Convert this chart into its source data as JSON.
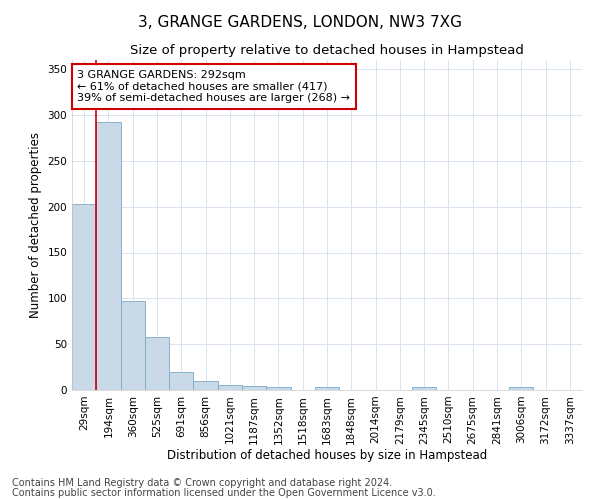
{
  "title": "3, GRANGE GARDENS, LONDON, NW3 7XG",
  "subtitle": "Size of property relative to detached houses in Hampstead",
  "xlabel": "Distribution of detached houses by size in Hampstead",
  "ylabel": "Number of detached properties",
  "bar_labels": [
    "29sqm",
    "194sqm",
    "360sqm",
    "525sqm",
    "691sqm",
    "856sqm",
    "1021sqm",
    "1187sqm",
    "1352sqm",
    "1518sqm",
    "1683sqm",
    "1848sqm",
    "2014sqm",
    "2179sqm",
    "2345sqm",
    "2510sqm",
    "2675sqm",
    "2841sqm",
    "3006sqm",
    "3172sqm",
    "3337sqm"
  ],
  "bar_values": [
    203,
    292,
    97,
    58,
    20,
    10,
    6,
    4,
    3,
    0,
    3,
    0,
    0,
    0,
    3,
    0,
    0,
    0,
    3,
    0,
    0
  ],
  "bar_color": "#c9d9e8",
  "bar_edge_color": "#7aaac8",
  "vline_color": "#cc0000",
  "vline_x_index": 1,
  "annotation_text": "3 GRANGE GARDENS: 292sqm\n← 61% of detached houses are smaller (417)\n39% of semi-detached houses are larger (268) →",
  "annotation_box_facecolor": "#ffffff",
  "annotation_box_edgecolor": "#cc0000",
  "ylim": [
    0,
    360
  ],
  "yticks": [
    0,
    50,
    100,
    150,
    200,
    250,
    300,
    350
  ],
  "grid_color": "#d8e4f0",
  "footnote1": "Contains HM Land Registry data © Crown copyright and database right 2024.",
  "footnote2": "Contains public sector information licensed under the Open Government Licence v3.0.",
  "title_fontsize": 11,
  "subtitle_fontsize": 9.5,
  "axis_label_fontsize": 8.5,
  "tick_fontsize": 7.5,
  "annotation_fontsize": 8,
  "footnote_fontsize": 7
}
